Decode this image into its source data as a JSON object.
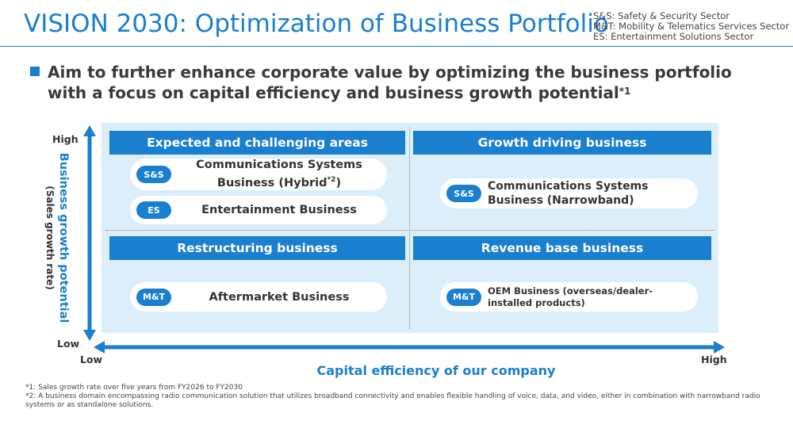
{
  "header": {
    "title": "VISION 2030: Optimization of Business Portfolio",
    "legend": [
      "S&S: Safety & Security Sector",
      "M&T: Mobility & Telematics Services Sector",
      "ES: Entertainment Solutions Sector"
    ]
  },
  "headline": {
    "line1": "Aim to further enhance corporate value by optimizing the business portfolio",
    "line2": "with a focus on capital efficiency and business growth potential",
    "sup": "*1"
  },
  "matrix": {
    "y_axis": {
      "title": "Business growth potential",
      "subtitle": "(Sales growth rate)",
      "high": "High",
      "low": "Low"
    },
    "x_axis": {
      "title": "Capital efficiency of our company",
      "low": "Low",
      "high": "High"
    },
    "quadrants": {
      "top_left": {
        "heading": "Expected and challenging areas",
        "items": [
          {
            "tag": "S&S",
            "line1": "Communications Systems",
            "line2": "Business (Hybrid",
            "sup": "*2",
            "close": ")"
          },
          {
            "tag": "ES",
            "text": "Entertainment Business"
          }
        ]
      },
      "top_right": {
        "heading": "Growth driving business",
        "items": [
          {
            "tag": "S&S",
            "line1": "Communications Systems",
            "line2": "Business (Narrowband)"
          }
        ]
      },
      "bottom_left": {
        "heading": "Restructuring business",
        "items": [
          {
            "tag": "M&T",
            "text": "Aftermarket Business"
          }
        ]
      },
      "bottom_right": {
        "heading": "Revenue base business",
        "items": [
          {
            "tag": "M&T",
            "line1": "OEM Business (overseas/dealer-",
            "line2": "installed products)"
          }
        ]
      }
    }
  },
  "footnotes": {
    "fn1": "*1: Sales growth rate over five years from FY2026 to FY2030",
    "fn2": "*2: A business domain encompassing radio communication solution that utilizes broadband connectivity and enables flexible handling of voice, data, and video, either in combination with narrowband radio systems or as standalone solutions."
  },
  "colors": {
    "accent": "#1a7fcf",
    "panel": "#dbeefa"
  }
}
